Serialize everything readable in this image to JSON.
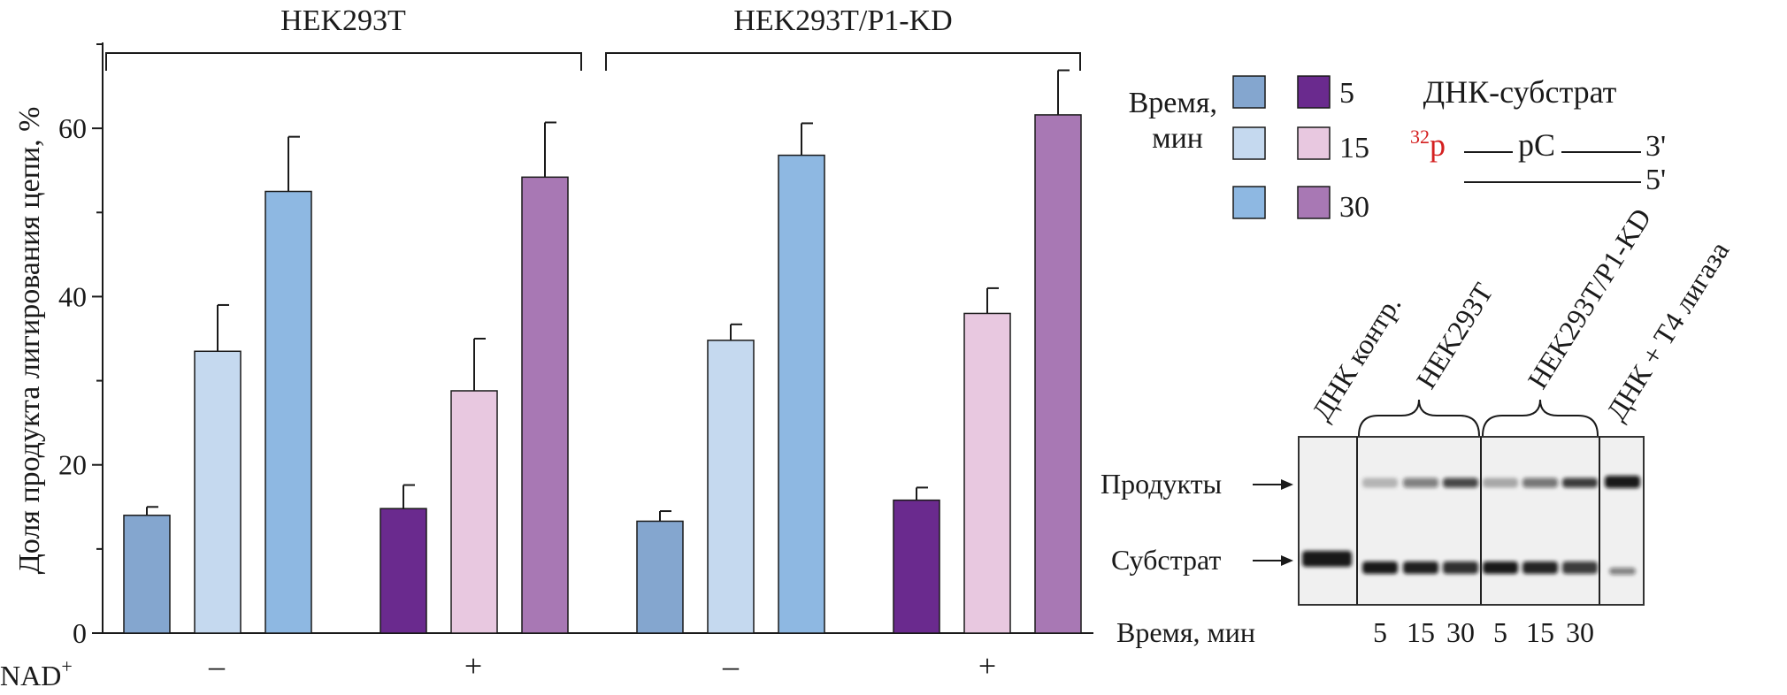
{
  "chart_data": {
    "type": "bar",
    "ylabel": "Доля продукта лигирования цепи, %",
    "ylim": [
      0,
      70
    ],
    "yticks": [
      "0",
      "20",
      "40",
      "60"
    ],
    "groups": [
      "HEK293T",
      "HEK293T/P1-KD"
    ],
    "nad_label": "NAD",
    "nad_sup": "+",
    "nad_values": [
      "–",
      "+",
      "–",
      "+"
    ],
    "time_points": [
      "5",
      "15",
      "30"
    ],
    "series": [
      {
        "group": "HEK293T",
        "nad": "–",
        "values": [
          14,
          33.5,
          52.5
        ],
        "errors": [
          1,
          5.5,
          6.5
        ],
        "colors": [
          "#84a6cf",
          "#c5d9ef",
          "#8eb8e2"
        ]
      },
      {
        "group": "HEK293T",
        "nad": "+",
        "values": [
          14.8,
          28.8,
          54.2
        ],
        "errors": [
          2.8,
          6.2,
          6.5
        ],
        "colors": [
          "#6a2a8e",
          "#e8c8e0",
          "#a878b4"
        ]
      },
      {
        "group": "HEK293T/P1-KD",
        "nad": "–",
        "values": [
          13.3,
          34.8,
          56.8
        ],
        "errors": [
          1.2,
          1.9,
          3.8
        ],
        "colors": [
          "#84a6cf",
          "#c5d9ef",
          "#8eb8e2"
        ]
      },
      {
        "group": "HEK293T/P1-KD",
        "nad": "+",
        "values": [
          15.8,
          38,
          61.6
        ],
        "errors": [
          1.5,
          3,
          5.3
        ],
        "colors": [
          "#6a2a8e",
          "#e8c8e0",
          "#a878b4"
        ]
      }
    ],
    "legend": {
      "title_line1": "Время,",
      "title_line2": "мин",
      "entries": [
        "5",
        "15",
        "30"
      ],
      "minus_colors": [
        "#84a6cf",
        "#c5d9ef",
        "#8eb8e2"
      ],
      "plus_colors": [
        "#6a2a8e",
        "#e8c8e0",
        "#a878b4"
      ]
    }
  },
  "substrate": {
    "title": "ДНК-субстрат",
    "label_sup": "32",
    "label_p": "p",
    "nick": "pC",
    "end_top": "3'",
    "end_bottom": "5'"
  },
  "gel": {
    "lane_labels": [
      "ДНК контр.",
      "HEK293T",
      "HEK293T/P1-KD",
      "ДНК + T4 лигаза"
    ],
    "band_products": "Продукты",
    "band_substrate": "Субстрат",
    "time_label": "Время, мин",
    "times": [
      "5",
      "15",
      "30",
      "5",
      "15",
      "30"
    ]
  }
}
